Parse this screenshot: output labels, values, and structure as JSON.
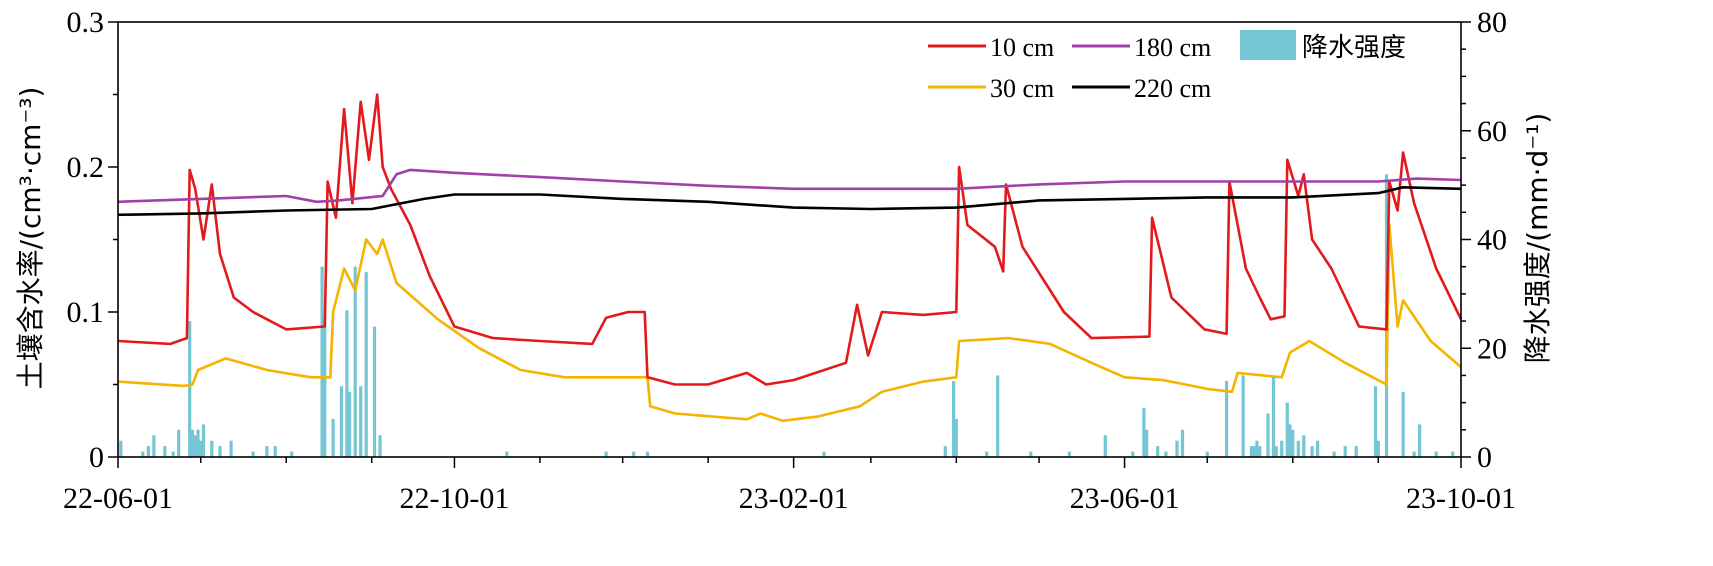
{
  "chart_data": {
    "type": "line",
    "title": "",
    "ylabel_left": "土壤含水率/(cm³·cm⁻³)",
    "ylabel_right": "降水强度/(mm·d⁻¹)",
    "x_ticks": [
      "22-06-01",
      "22-10-01",
      "23-02-01",
      "23-06-01",
      "23-10-01"
    ],
    "xlim": [
      "2022-06-01",
      "2023-10-01"
    ],
    "ylim_left": [
      0,
      0.3
    ],
    "ylim_right": [
      0,
      80
    ],
    "yticks_left": [
      "0",
      "0.1",
      "0.2",
      "0.3"
    ],
    "yticks_right": [
      "0",
      "20",
      "40",
      "60",
      "80"
    ],
    "legend": {
      "placement": "top-right",
      "entries": [
        "10 cm",
        "180 cm",
        "降水强度",
        "30 cm",
        "220 cm"
      ]
    },
    "series": [
      {
        "name": "10 cm",
        "color": "#e31a1c",
        "points": [
          [
            "2022-06-01",
            0.08
          ],
          [
            "2022-06-20",
            0.078
          ],
          [
            "2022-06-26",
            0.082
          ],
          [
            "2022-06-27",
            0.198
          ],
          [
            "2022-06-29",
            0.185
          ],
          [
            "2022-07-02",
            0.15
          ],
          [
            "2022-07-05",
            0.188
          ],
          [
            "2022-07-08",
            0.14
          ],
          [
            "2022-07-13",
            0.11
          ],
          [
            "2022-07-20",
            0.1
          ],
          [
            "2022-08-01",
            0.088
          ],
          [
            "2022-08-15",
            0.09
          ],
          [
            "2022-08-16",
            0.19
          ],
          [
            "2022-08-19",
            0.165
          ],
          [
            "2022-08-22",
            0.24
          ],
          [
            "2022-08-25",
            0.175
          ],
          [
            "2022-08-28",
            0.245
          ],
          [
            "2022-08-31",
            0.205
          ],
          [
            "2022-09-03",
            0.25
          ],
          [
            "2022-09-05",
            0.2
          ],
          [
            "2022-09-08",
            0.185
          ],
          [
            "2022-09-15",
            0.16
          ],
          [
            "2022-09-22",
            0.125
          ],
          [
            "2022-10-01",
            0.09
          ],
          [
            "2022-10-15",
            0.082
          ],
          [
            "2022-11-01",
            0.08
          ],
          [
            "2022-11-20",
            0.078
          ],
          [
            "2022-11-25",
            0.096
          ],
          [
            "2022-12-03",
            0.1
          ],
          [
            "2022-12-09",
            0.1
          ],
          [
            "2022-12-10",
            0.055
          ],
          [
            "2022-12-20",
            0.05
          ],
          [
            "2023-01-01",
            0.05
          ],
          [
            "2023-01-15",
            0.058
          ],
          [
            "2023-01-22",
            0.05
          ],
          [
            "2023-02-01",
            0.053
          ],
          [
            "2023-02-20",
            0.065
          ],
          [
            "2023-02-24",
            0.105
          ],
          [
            "2023-02-28",
            0.07
          ],
          [
            "2023-03-05",
            0.1
          ],
          [
            "2023-03-20",
            0.098
          ],
          [
            "2023-04-01",
            0.1
          ],
          [
            "2023-04-02",
            0.2
          ],
          [
            "2023-04-05",
            0.16
          ],
          [
            "2023-04-15",
            0.145
          ],
          [
            "2023-04-18",
            0.128
          ],
          [
            "2023-04-19",
            0.188
          ],
          [
            "2023-04-25",
            0.145
          ],
          [
            "2023-05-10",
            0.1
          ],
          [
            "2023-05-20",
            0.082
          ],
          [
            "2023-06-10",
            0.083
          ],
          [
            "2023-06-11",
            0.165
          ],
          [
            "2023-06-18",
            0.11
          ],
          [
            "2023-06-30",
            0.088
          ],
          [
            "2023-07-08",
            0.085
          ],
          [
            "2023-07-09",
            0.19
          ],
          [
            "2023-07-15",
            0.13
          ],
          [
            "2023-07-20",
            0.11
          ],
          [
            "2023-07-24",
            0.095
          ],
          [
            "2023-07-29",
            0.097
          ],
          [
            "2023-07-30",
            0.205
          ],
          [
            "2023-08-03",
            0.18
          ],
          [
            "2023-08-05",
            0.195
          ],
          [
            "2023-08-08",
            0.15
          ],
          [
            "2023-08-15",
            0.13
          ],
          [
            "2023-08-25",
            0.09
          ],
          [
            "2023-09-04",
            0.088
          ],
          [
            "2023-09-05",
            0.19
          ],
          [
            "2023-09-08",
            0.17
          ],
          [
            "2023-09-10",
            0.21
          ],
          [
            "2023-09-14",
            0.175
          ],
          [
            "2023-09-22",
            0.13
          ],
          [
            "2023-10-01",
            0.095
          ]
        ]
      },
      {
        "name": "30 cm",
        "color": "#f4b400",
        "points": [
          [
            "2022-06-01",
            0.052
          ],
          [
            "2022-06-25",
            0.049
          ],
          [
            "2022-06-28",
            0.05
          ],
          [
            "2022-06-30",
            0.06
          ],
          [
            "2022-07-10",
            0.068
          ],
          [
            "2022-07-25",
            0.06
          ],
          [
            "2022-08-10",
            0.055
          ],
          [
            "2022-08-17",
            0.055
          ],
          [
            "2022-08-18",
            0.1
          ],
          [
            "2022-08-22",
            0.13
          ],
          [
            "2022-08-26",
            0.115
          ],
          [
            "2022-08-30",
            0.15
          ],
          [
            "2022-09-03",
            0.14
          ],
          [
            "2022-09-05",
            0.15
          ],
          [
            "2022-09-10",
            0.12
          ],
          [
            "2022-09-25",
            0.095
          ],
          [
            "2022-10-10",
            0.075
          ],
          [
            "2022-10-25",
            0.06
          ],
          [
            "2022-11-10",
            0.055
          ],
          [
            "2022-12-10",
            0.055
          ],
          [
            "2022-12-11",
            0.035
          ],
          [
            "2022-12-20",
            0.03
          ],
          [
            "2023-01-15",
            0.026
          ],
          [
            "2023-01-20",
            0.03
          ],
          [
            "2023-01-28",
            0.025
          ],
          [
            "2023-02-10",
            0.028
          ],
          [
            "2023-02-25",
            0.035
          ],
          [
            "2023-03-05",
            0.045
          ],
          [
            "2023-03-20",
            0.052
          ],
          [
            "2023-04-01",
            0.055
          ],
          [
            "2023-04-02",
            0.08
          ],
          [
            "2023-04-20",
            0.082
          ],
          [
            "2023-05-05",
            0.078
          ],
          [
            "2023-05-20",
            0.065
          ],
          [
            "2023-06-01",
            0.055
          ],
          [
            "2023-06-15",
            0.053
          ],
          [
            "2023-07-01",
            0.047
          ],
          [
            "2023-07-10",
            0.045
          ],
          [
            "2023-07-12",
            0.058
          ],
          [
            "2023-07-28",
            0.055
          ],
          [
            "2023-07-31",
            0.072
          ],
          [
            "2023-08-07",
            0.08
          ],
          [
            "2023-08-20",
            0.065
          ],
          [
            "2023-09-04",
            0.05
          ],
          [
            "2023-09-05",
            0.16
          ],
          [
            "2023-09-08",
            0.09
          ],
          [
            "2023-09-10",
            0.108
          ],
          [
            "2023-09-20",
            0.08
          ],
          [
            "2023-10-01",
            0.062
          ]
        ]
      },
      {
        "name": "180 cm",
        "color": "#a040a8",
        "points": [
          [
            "2022-06-01",
            0.176
          ],
          [
            "2022-07-01",
            0.178
          ],
          [
            "2022-08-01",
            0.18
          ],
          [
            "2022-08-12",
            0.176
          ],
          [
            "2022-08-20",
            0.177
          ],
          [
            "2022-09-05",
            0.18
          ],
          [
            "2022-09-10",
            0.195
          ],
          [
            "2022-09-15",
            0.198
          ],
          [
            "2022-10-01",
            0.196
          ],
          [
            "2022-11-01",
            0.193
          ],
          [
            "2022-12-01",
            0.19
          ],
          [
            "2023-01-01",
            0.187
          ],
          [
            "2023-02-01",
            0.185
          ],
          [
            "2023-03-01",
            0.185
          ],
          [
            "2023-04-01",
            0.185
          ],
          [
            "2023-05-01",
            0.188
          ],
          [
            "2023-06-01",
            0.19
          ],
          [
            "2023-07-01",
            0.19
          ],
          [
            "2023-08-01",
            0.19
          ],
          [
            "2023-09-01",
            0.19
          ],
          [
            "2023-09-15",
            0.192
          ],
          [
            "2023-10-01",
            0.191
          ]
        ]
      },
      {
        "name": "220 cm",
        "color": "#000000",
        "points": [
          [
            "2022-06-01",
            0.167
          ],
          [
            "2022-07-01",
            0.168
          ],
          [
            "2022-08-01",
            0.17
          ],
          [
            "2022-09-01",
            0.171
          ],
          [
            "2022-09-20",
            0.178
          ],
          [
            "2022-10-01",
            0.181
          ],
          [
            "2022-11-01",
            0.181
          ],
          [
            "2022-12-01",
            0.178
          ],
          [
            "2023-01-01",
            0.176
          ],
          [
            "2023-02-01",
            0.172
          ],
          [
            "2023-03-01",
            0.171
          ],
          [
            "2023-04-01",
            0.172
          ],
          [
            "2023-05-01",
            0.177
          ],
          [
            "2023-06-01",
            0.178
          ],
          [
            "2023-07-01",
            0.179
          ],
          [
            "2023-08-01",
            0.179
          ],
          [
            "2023-09-01",
            0.182
          ],
          [
            "2023-09-10",
            0.186
          ],
          [
            "2023-10-01",
            0.185
          ]
        ]
      }
    ],
    "bars": {
      "name": "降水强度",
      "color": "#74c6d4",
      "axis": "right",
      "points": [
        [
          "2022-06-02",
          3
        ],
        [
          "2022-06-10",
          1
        ],
        [
          "2022-06-12",
          2
        ],
        [
          "2022-06-14",
          4
        ],
        [
          "2022-06-18",
          2
        ],
        [
          "2022-06-21",
          1
        ],
        [
          "2022-06-23",
          5
        ],
        [
          "2022-06-27",
          25
        ],
        [
          "2022-06-28",
          5
        ],
        [
          "2022-06-29",
          4
        ],
        [
          "2022-06-30",
          5
        ],
        [
          "2022-07-01",
          3
        ],
        [
          "2022-07-02",
          6
        ],
        [
          "2022-07-05",
          3
        ],
        [
          "2022-07-08",
          2
        ],
        [
          "2022-07-12",
          3
        ],
        [
          "2022-07-20",
          1
        ],
        [
          "2022-07-25",
          2
        ],
        [
          "2022-07-28",
          2
        ],
        [
          "2022-08-03",
          1
        ],
        [
          "2022-08-14",
          35
        ],
        [
          "2022-08-15",
          25
        ],
        [
          "2022-08-18",
          7
        ],
        [
          "2022-08-21",
          13
        ],
        [
          "2022-08-23",
          27
        ],
        [
          "2022-08-24",
          12
        ],
        [
          "2022-08-26",
          35
        ],
        [
          "2022-08-28",
          13
        ],
        [
          "2022-08-30",
          34
        ],
        [
          "2022-09-02",
          24
        ],
        [
          "2022-09-04",
          4
        ],
        [
          "2022-10-20",
          1
        ],
        [
          "2022-11-25",
          1
        ],
        [
          "2022-12-05",
          1
        ],
        [
          "2022-12-10",
          1
        ],
        [
          "2023-02-12",
          1
        ],
        [
          "2023-03-28",
          2
        ],
        [
          "2023-03-31",
          14
        ],
        [
          "2023-04-01",
          7
        ],
        [
          "2023-04-12",
          1
        ],
        [
          "2023-04-16",
          15
        ],
        [
          "2023-04-28",
          1
        ],
        [
          "2023-05-12",
          1
        ],
        [
          "2023-05-25",
          4
        ],
        [
          "2023-06-04",
          1
        ],
        [
          "2023-06-08",
          9
        ],
        [
          "2023-06-09",
          5
        ],
        [
          "2023-06-13",
          2
        ],
        [
          "2023-06-16",
          1
        ],
        [
          "2023-06-20",
          3
        ],
        [
          "2023-06-22",
          5
        ],
        [
          "2023-07-01",
          1
        ],
        [
          "2023-07-08",
          14
        ],
        [
          "2023-07-14",
          15
        ],
        [
          "2023-07-17",
          2
        ],
        [
          "2023-07-18",
          2
        ],
        [
          "2023-07-19",
          3
        ],
        [
          "2023-07-20",
          2
        ],
        [
          "2023-07-23",
          8
        ],
        [
          "2023-07-25",
          15
        ],
        [
          "2023-07-26",
          2
        ],
        [
          "2023-07-28",
          3
        ],
        [
          "2023-07-30",
          10
        ],
        [
          "2023-07-31",
          6
        ],
        [
          "2023-08-01",
          5
        ],
        [
          "2023-08-03",
          3
        ],
        [
          "2023-08-05",
          4
        ],
        [
          "2023-08-08",
          2
        ],
        [
          "2023-08-10",
          3
        ],
        [
          "2023-08-16",
          1
        ],
        [
          "2023-08-20",
          2
        ],
        [
          "2023-08-24",
          2
        ],
        [
          "2023-08-31",
          13
        ],
        [
          "2023-09-01",
          3
        ],
        [
          "2023-09-04",
          52
        ],
        [
          "2023-09-10",
          12
        ],
        [
          "2023-09-14",
          1
        ],
        [
          "2023-09-16",
          6
        ],
        [
          "2023-09-22",
          1
        ],
        [
          "2023-09-28",
          1
        ]
      ]
    }
  }
}
